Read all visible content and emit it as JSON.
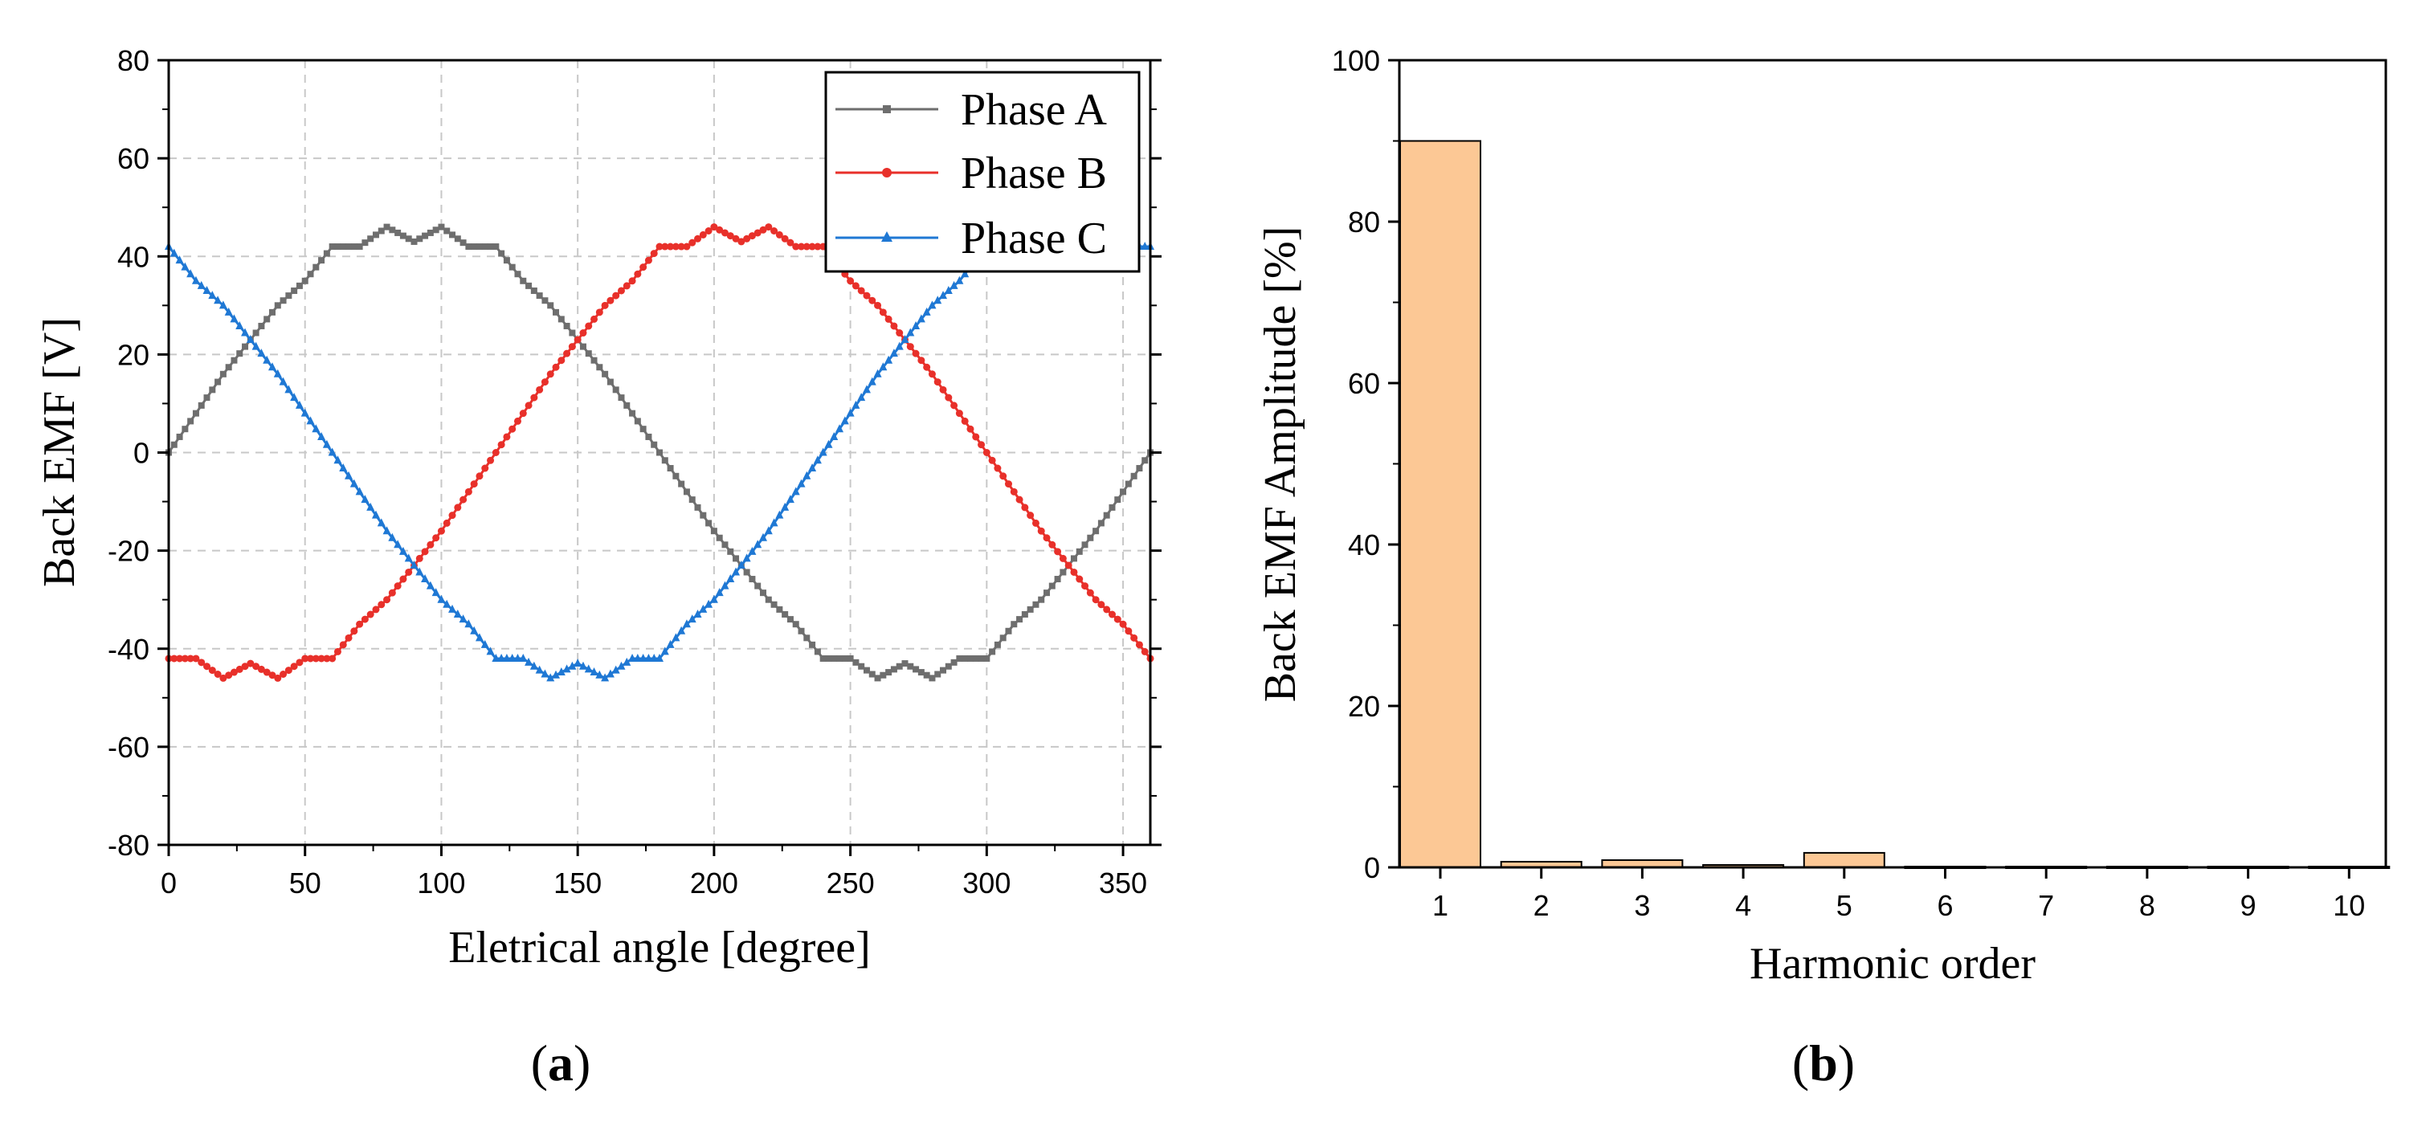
{
  "chart_data": [
    {
      "type": "line",
      "panel_label": "a",
      "title": "",
      "xlabel": "Eletrical angle [degree]",
      "ylabel": "Back EMF [V]",
      "xlim": [
        0,
        360
      ],
      "ylim": [
        -80,
        80
      ],
      "xticks": [
        0,
        50,
        100,
        150,
        200,
        250,
        300,
        350
      ],
      "yticks": [
        -80,
        -60,
        -40,
        -20,
        0,
        20,
        40,
        60,
        80
      ],
      "grid": true,
      "legend_position": "top-right",
      "series": [
        {
          "name": "Phase A",
          "color": "#6e6e6e",
          "marker": "square"
        },
        {
          "name": "Phase B",
          "color": "#e8302a",
          "marker": "circle"
        },
        {
          "name": "Phase C",
          "color": "#1f78d4",
          "marker": "triangle"
        }
      ],
      "waveform": {
        "x": [
          0,
          10,
          20,
          30,
          40,
          50,
          60,
          70,
          80,
          90,
          100,
          110,
          120,
          130,
          140,
          150,
          160,
          170,
          180,
          190,
          200,
          210,
          220,
          230,
          240,
          250,
          260,
          270,
          280,
          290,
          300,
          310,
          320,
          330,
          340,
          350,
          360
        ],
        "phase_a_values": [
          0,
          8,
          16,
          23,
          30,
          35,
          42,
          42,
          46,
          43,
          46,
          42,
          42,
          35,
          30,
          23,
          16,
          8,
          0,
          -8,
          -16,
          -23,
          -30,
          -35,
          -42,
          -42,
          -46,
          -43,
          -46,
          -42,
          -42,
          -35,
          -30,
          -23,
          -16,
          -8,
          0
        ],
        "phase_b_shift_deg": 120,
        "phase_c_shift_deg": 240,
        "note": "Phase B and C are Phase A shifted by the given electrical degrees"
      }
    },
    {
      "type": "bar",
      "panel_label": "b",
      "title": "",
      "xlabel": "Harmonic order",
      "ylabel": "Back EMF Amplitude [%]",
      "ylim": [
        0,
        100
      ],
      "yticks": [
        0,
        20,
        40,
        60,
        80,
        100
      ],
      "grid": false,
      "bar_color": "#fcc895",
      "categories": [
        "1",
        "2",
        "3",
        "4",
        "5",
        "6",
        "7",
        "8",
        "9",
        "10"
      ],
      "values": [
        90,
        0.7,
        0.9,
        0.3,
        1.8,
        0.1,
        0.1,
        0.1,
        0.1,
        0.1
      ]
    }
  ]
}
